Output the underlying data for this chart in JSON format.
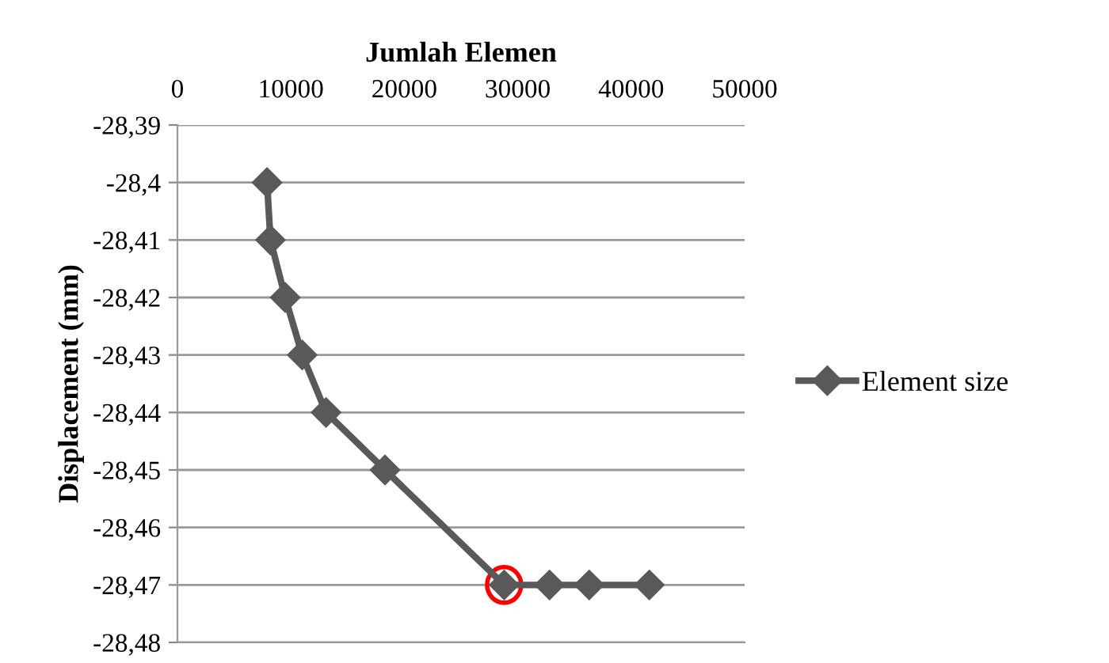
{
  "chart_data": {
    "type": "line",
    "xlabel": "Jumlah Elemen",
    "ylabel": "Displacement (mm)",
    "series": [
      {
        "name": "Element size",
        "color": "#595959",
        "x": [
          7900,
          8200,
          9500,
          11000,
          13100,
          18300,
          28800,
          32800,
          36300,
          41600
        ],
        "values": [
          -28.4,
          -28.41,
          -28.42,
          -28.43,
          -28.44,
          -28.45,
          -28.47,
          -28.47,
          -28.47,
          -28.47
        ]
      }
    ],
    "xlim": [
      0,
      50000
    ],
    "xticks": [
      0,
      10000,
      20000,
      30000,
      40000,
      50000
    ],
    "ylim": [
      -28.48,
      -28.39
    ],
    "yticks": [
      {
        "value": -28.39,
        "label": "-28,39"
      },
      {
        "value": -28.4,
        "label": "-28,4"
      },
      {
        "value": -28.41,
        "label": "-28,41"
      },
      {
        "value": -28.42,
        "label": "-28,42"
      },
      {
        "value": -28.43,
        "label": "-28,43"
      },
      {
        "value": -28.44,
        "label": "-28,44"
      },
      {
        "value": -28.45,
        "label": "-28,45"
      },
      {
        "value": -28.46,
        "label": "-28,46"
      },
      {
        "value": -28.47,
        "label": "-28,47"
      },
      {
        "value": -28.48,
        "label": "-28,48"
      }
    ],
    "grid": "y",
    "legend": "right",
    "marker": "diamond",
    "line_style": "solid"
  }
}
